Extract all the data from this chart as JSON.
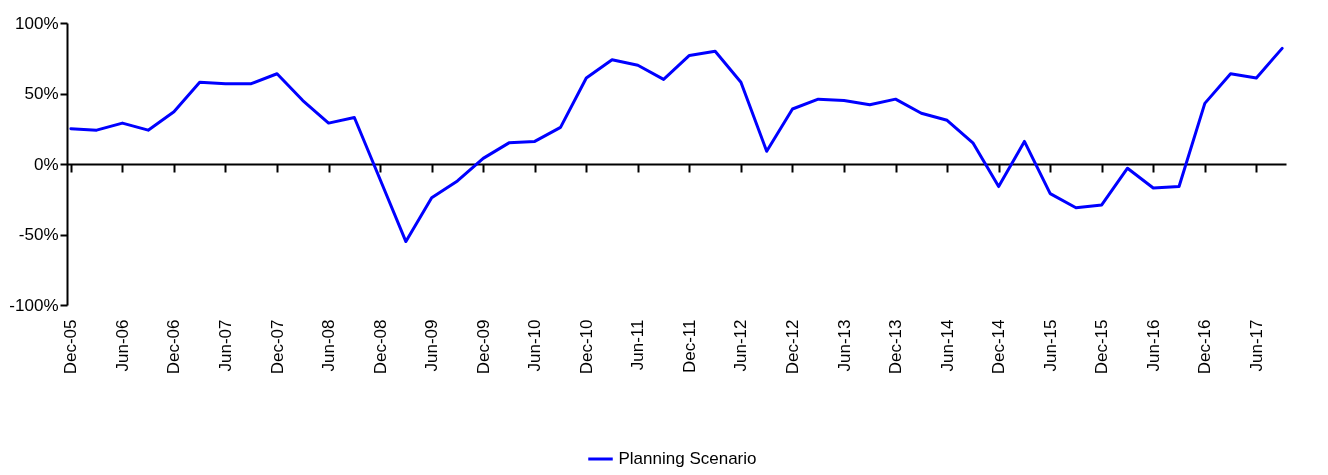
{
  "chart_data": {
    "type": "line",
    "categories": [
      "Dec-05",
      null,
      "Jun-06",
      null,
      "Dec-06",
      null,
      "Jun-07",
      null,
      "Dec-07",
      null,
      "Jun-08",
      null,
      "Dec-08",
      null,
      "Jun-09",
      null,
      "Dec-09",
      null,
      "Jun-10",
      null,
      "Dec-10",
      null,
      "Jun-11",
      null,
      "Dec-11",
      null,
      "Jun-12",
      null,
      "Dec-12",
      null,
      "Jun-13",
      null,
      "Dec-13",
      null,
      "Jun-14",
      null,
      "Dec-14",
      null,
      "Jun-15",
      null,
      "Dec-15",
      null,
      "Jun-16",
      null,
      "Dec-16",
      null,
      "Jun-17",
      null
    ],
    "series": [
      {
        "name": "Planning Scenario",
        "color": "#0000ff",
        "values": [
          25,
          24,
          29,
          24,
          37,
          58,
          57,
          57,
          64,
          45,
          29,
          33,
          -11,
          -55,
          -24,
          -12,
          4,
          15,
          16,
          26,
          61,
          74,
          70,
          60,
          77,
          80,
          58,
          9,
          39,
          46,
          45,
          42,
          46,
          36,
          31,
          15,
          -16,
          16,
          -21,
          -31,
          -29,
          -3,
          -17,
          -16,
          43,
          64,
          61,
          82
        ]
      }
    ],
    "ylim": [
      -100,
      100
    ],
    "yticks": [
      {
        "value": -100,
        "label": "-100%"
      },
      {
        "value": -50,
        "label": "-50%"
      },
      {
        "value": 0,
        "label": "0%"
      },
      {
        "value": 50,
        "label": "50%"
      },
      {
        "value": 100,
        "label": "100%"
      }
    ],
    "legend": "bottom",
    "marker": "none",
    "line_style": "solid"
  }
}
